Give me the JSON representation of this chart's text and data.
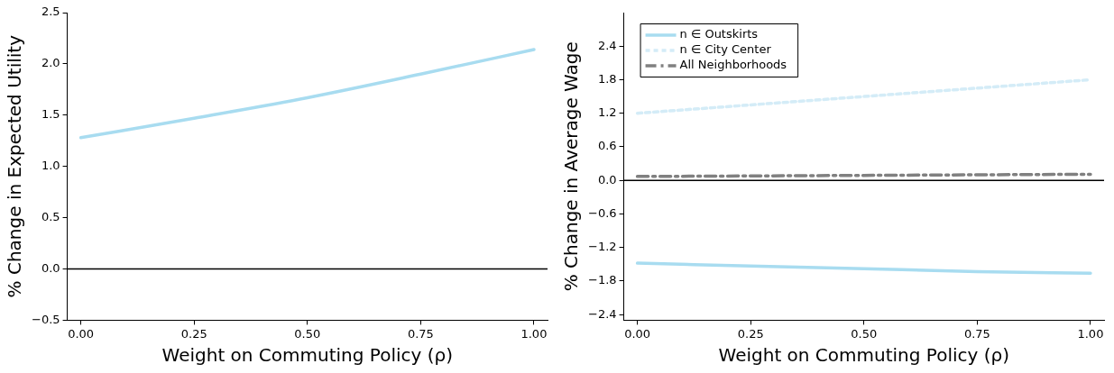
{
  "chart_data": [
    {
      "type": "line",
      "xlabel": "Weight on Commuting Policy (ρ)",
      "ylabel": "% Change in Expected Utility",
      "x": [
        0,
        0.25,
        0.5,
        0.75,
        1
      ],
      "series": [
        {
          "color": "#a8dcf0",
          "values": [
            1.28,
            1.47,
            1.67,
            1.9,
            2.14
          ]
        }
      ],
      "xlim": [
        -0.03,
        1.03
      ],
      "xticks": [
        {
          "value": 0,
          "label": "0.00"
        },
        {
          "value": 0.25,
          "label": "0.25"
        },
        {
          "value": 0.5,
          "label": "0.50"
        },
        {
          "value": 0.75,
          "label": "0.75"
        },
        {
          "value": 1,
          "label": "1.00"
        }
      ],
      "ylim": [
        -0.5,
        2.5
      ],
      "yticks": [
        {
          "value": -0.5,
          "label": "−0.5"
        },
        {
          "value": 0,
          "label": "0.0"
        },
        {
          "value": 0.5,
          "label": "0.5"
        },
        {
          "value": 1,
          "label": "1.0"
        },
        {
          "value": 1.5,
          "label": "1.5"
        },
        {
          "value": 2,
          "label": "2.0"
        },
        {
          "value": 2.5,
          "label": "2.5"
        }
      ],
      "ref_lines": [
        {
          "axis": "y",
          "value": 0,
          "color": "#000000"
        }
      ],
      "grid": false,
      "legend": false,
      "marker": "none"
    },
    {
      "type": "line",
      "xlabel": "Weight on Commuting Policy (ρ)",
      "ylabel": "% Change in Average Wage",
      "x": [
        0,
        0.25,
        0.5,
        0.75,
        1
      ],
      "series": [
        {
          "name": "n ∈ Outskirts",
          "color": "#a8dcf0",
          "line_style": "solid",
          "values": [
            -1.48,
            -1.53,
            -1.58,
            -1.63,
            -1.66
          ]
        },
        {
          "name": "n ∈ City Center",
          "color": "#d4ecf7",
          "line_style": "dotted",
          "values": [
            1.2,
            1.35,
            1.5,
            1.65,
            1.8
          ]
        },
        {
          "name": "All Neighborhoods",
          "color": "#808080",
          "line_style": "dashed",
          "values": [
            0.07,
            0.08,
            0.09,
            0.1,
            0.11
          ]
        }
      ],
      "xlim": [
        -0.03,
        1.03
      ],
      "xticks": [
        {
          "value": 0,
          "label": "0.00"
        },
        {
          "value": 0.25,
          "label": "0.25"
        },
        {
          "value": 0.5,
          "label": "0.50"
        },
        {
          "value": 0.75,
          "label": "0.75"
        },
        {
          "value": 1,
          "label": "1.00"
        }
      ],
      "ylim": [
        -2.5,
        3.0
      ],
      "yticks": [
        {
          "value": -2.4,
          "label": "−2.4"
        },
        {
          "value": -1.8,
          "label": "−1.8"
        },
        {
          "value": -1.2,
          "label": "−1.2"
        },
        {
          "value": -0.6,
          "label": "−0.6"
        },
        {
          "value": 0,
          "label": "0.0"
        },
        {
          "value": 0.6,
          "label": "0.6"
        },
        {
          "value": 1.2,
          "label": "1.2"
        },
        {
          "value": 1.8,
          "label": "1.8"
        },
        {
          "value": 2.4,
          "label": "2.4"
        }
      ],
      "ref_lines": [
        {
          "axis": "y",
          "value": 0,
          "color": "#000000"
        }
      ],
      "grid": false,
      "legend": "top left",
      "marker": "none"
    }
  ]
}
